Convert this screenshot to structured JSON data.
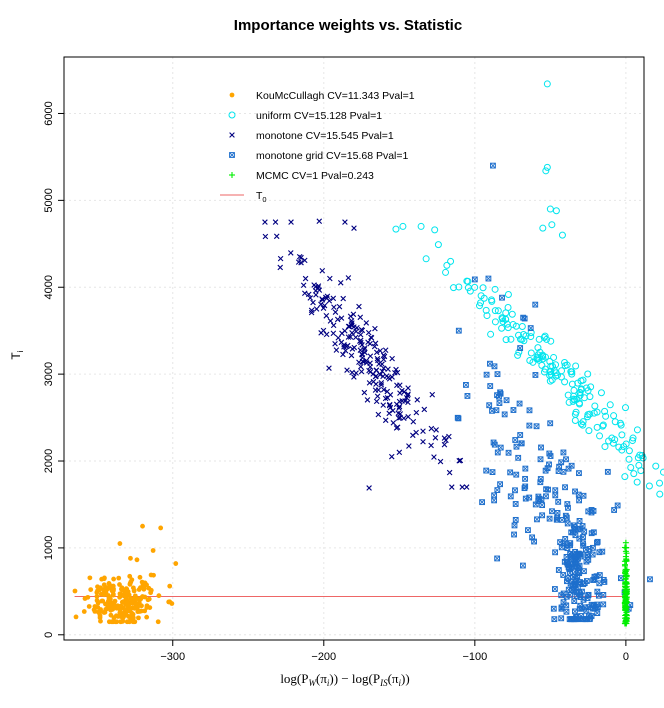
{
  "chart_data": {
    "type": "scatter",
    "title": "Importance weights vs. Statistic",
    "xlabel": "log(P_W(π_i)) − log(P_IS(π_i))",
    "xlabel_main": "log(P",
    "ylabel": "T",
    "ylabel_sub": "i",
    "xlim": [
      -372,
      12
    ],
    "ylim": [
      -60,
      6650
    ],
    "xticks": [
      -300,
      -200,
      -100,
      0
    ],
    "xtick_labels": [
      "−300",
      "−200",
      "−100",
      "0"
    ],
    "yticks": [
      0,
      1000,
      2000,
      3000,
      4000,
      5000,
      6000
    ],
    "ytick_labels": [
      "0",
      "1000",
      "2000",
      "3000",
      "4000",
      "5000",
      "6000"
    ],
    "grid": true,
    "legend_position": "top-center",
    "reference_line": {
      "name": "T0",
      "y": 440,
      "x_from": -365,
      "x_to": 0,
      "color": "#ee6666"
    },
    "series": [
      {
        "name": "KouMcCullagh CV=11.343 Pval=1",
        "legend": "KouMcCullagh CV=11.343 Pval=1",
        "marker": "filled-circle",
        "color": "#ffa500",
        "clusters": [
          {
            "n": 230,
            "x_mean": -333,
            "x_sd": 12,
            "y_mean": 380,
            "y_sd": 150,
            "y_min": 150
          }
        ],
        "points": [
          [
            -320,
            1250
          ],
          [
            -308,
            1230
          ],
          [
            -313,
            970
          ],
          [
            -328,
            880
          ],
          [
            -298,
            820
          ],
          [
            -335,
            1050
          ],
          [
            -302,
            560
          ]
        ]
      },
      {
        "name": "uniform CV=15.128 Pval=1",
        "legend": "uniform CV=15.128 Pval=1",
        "marker": "open-circle",
        "color": "#00e5ee",
        "clusters": [
          {
            "n": 200,
            "x_mean": -45,
            "x_sd": 9,
            "y_mean": 3000,
            "y_sd": 800,
            "y_min": 1500,
            "y_max": 4700,
            "slope": -55
          }
        ],
        "points": [
          [
            -52,
            6340
          ],
          [
            -52,
            5380
          ],
          [
            -53,
            5340
          ],
          [
            -50,
            4900
          ],
          [
            -46,
            4880
          ],
          [
            -49,
            4720
          ],
          [
            -42,
            4600
          ],
          [
            -55,
            4680
          ]
        ]
      },
      {
        "name": "monotone CV=15.545 Pval=1",
        "legend": "monotone CV=15.545 Pval=1",
        "marker": "x",
        "color": "#000080",
        "clusters": [
          {
            "n": 230,
            "x_mean": -172,
            "x_sd": 9,
            "y_mean": 3200,
            "y_sd": 650,
            "y_min": 1700,
            "y_max": 4750,
            "slope": -38
          }
        ],
        "points": [
          [
            -201,
            4190
          ],
          [
            -196,
            4100
          ],
          [
            -150,
            2100
          ],
          [
            -170,
            1690
          ],
          [
            -155,
            2050
          ],
          [
            -203,
            4760
          ],
          [
            -186,
            4750
          ],
          [
            -180,
            4680
          ]
        ]
      },
      {
        "name": "monotone grid CV=15.68 Pval=1",
        "legend": "monotone grid CV=15.68 Pval=1",
        "marker": "boxed-x",
        "color": "#1e6fcc",
        "clusters": [
          {
            "n": 140,
            "x_mean": -30,
            "x_sd": 7,
            "y_mean": 650,
            "y_sd": 350,
            "y_min": 180,
            "y_max": 1600
          },
          {
            "n": 150,
            "x_mean": -55,
            "x_sd": 18,
            "y_mean": 1600,
            "y_sd": 750,
            "y_min": 300,
            "y_max": 3500,
            "slope": -28
          }
        ],
        "points": [
          [
            -88,
            5400
          ],
          [
            -100,
            4090
          ],
          [
            -91,
            4100
          ],
          [
            -90,
            3120
          ],
          [
            -87,
            3090
          ],
          [
            -85,
            3000
          ],
          [
            -84,
            2740
          ],
          [
            -79,
            2700
          ],
          [
            -68,
            3650
          ],
          [
            -67,
            3640
          ],
          [
            -60,
            3800
          ],
          [
            -70,
            3300
          ],
          [
            -63,
            3530
          ],
          [
            -82,
            3880
          ],
          [
            -15,
            350
          ]
        ]
      },
      {
        "name": "MCMC CV=1 Pval=0.243",
        "legend": "MCMC CV=1 Pval=0.243",
        "marker": "plus",
        "color": "#00ee00",
        "clusters": [
          {
            "n": 120,
            "x_mean": 0,
            "x_sd": 0.8,
            "y_mean": 450,
            "y_sd": 190,
            "y_min": 130,
            "y_max": 1060
          }
        ],
        "points": [
          [
            0,
            1060
          ],
          [
            0,
            1000
          ],
          [
            0,
            960
          ],
          [
            0,
            900
          ]
        ]
      }
    ],
    "legend_entries": [
      {
        "label": "KouMcCullagh CV=11.343 Pval=1",
        "marker": "filled-circle",
        "color": "#ffa500"
      },
      {
        "label": "uniform CV=15.128 Pval=1",
        "marker": "open-circle",
        "color": "#00e5ee"
      },
      {
        "label": "monotone CV=15.545 Pval=1",
        "marker": "x",
        "color": "#000080"
      },
      {
        "label": "monotone grid CV=15.68 Pval=1",
        "marker": "boxed-x",
        "color": "#1e6fcc"
      },
      {
        "label": "MCMC CV=1 Pval=0.243",
        "marker": "plus",
        "color": "#00ee00"
      },
      {
        "label": "T",
        "label_sub": "0",
        "marker": "line",
        "color": "#ee6666"
      }
    ]
  }
}
